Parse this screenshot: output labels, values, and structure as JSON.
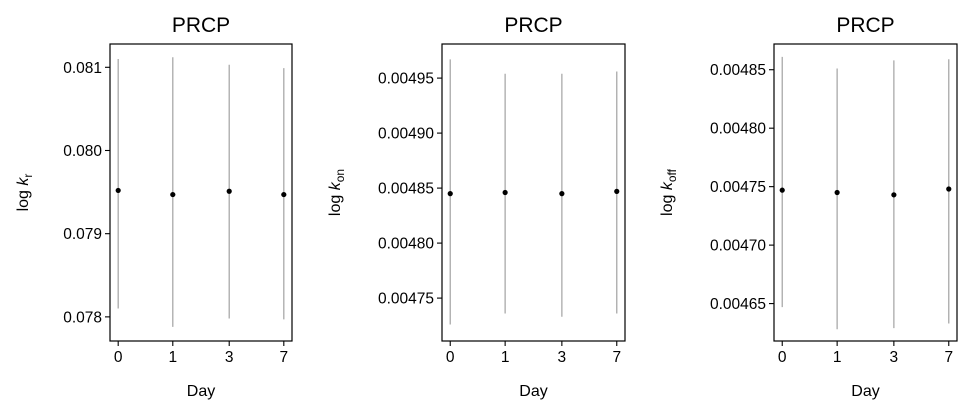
{
  "chart_data": [
    {
      "type": "scatter",
      "title": "PRCP",
      "xlabel": "Day",
      "ylabel": {
        "prefix": "log ",
        "k": "k",
        "sub": "r"
      },
      "categories": [
        "0",
        "1",
        "3",
        "7"
      ],
      "values": [
        0.07952,
        0.07947,
        0.07951,
        0.07947
      ],
      "err_low": [
        0.0781,
        0.07788,
        0.07798,
        0.07797
      ],
      "err_high": [
        0.0811,
        0.08112,
        0.08103,
        0.08099
      ],
      "ylim": [
        0.07771,
        0.08128
      ],
      "yticks": [
        0.078,
        0.079,
        0.08,
        0.081
      ],
      "ytick_labels": [
        "0.078",
        "0.079",
        "0.080",
        "0.081"
      ],
      "grid": false
    },
    {
      "type": "scatter",
      "title": "PRCP",
      "xlabel": "Day",
      "ylabel": {
        "prefix": "log ",
        "k": "k",
        "sub": "on"
      },
      "categories": [
        "0",
        "1",
        "3",
        "7"
      ],
      "values": [
        0.004845,
        0.004846,
        0.004845,
        0.004847
      ],
      "err_low": [
        0.004726,
        0.004736,
        0.004733,
        0.004736
      ],
      "err_high": [
        0.004967,
        0.004954,
        0.004954,
        0.004956
      ],
      "ylim": [
        0.004711,
        0.004981
      ],
      "yticks": [
        0.00475,
        0.0048,
        0.00485,
        0.0049,
        0.00495
      ],
      "ytick_labels": [
        "0.00475",
        "0.00480",
        "0.00485",
        "0.00490",
        "0.00495"
      ],
      "grid": false
    },
    {
      "type": "scatter",
      "title": "PRCP",
      "xlabel": "Day",
      "ylabel": {
        "prefix": "log ",
        "k": "k",
        "sub": "off"
      },
      "categories": [
        "0",
        "1",
        "3",
        "7"
      ],
      "values": [
        0.004747,
        0.004745,
        0.004743,
        0.004748
      ],
      "err_low": [
        0.004647,
        0.004628,
        0.004629,
        0.004633
      ],
      "err_high": [
        0.004861,
        0.004851,
        0.004858,
        0.004859
      ],
      "ylim": [
        0.004618,
        0.004872
      ],
      "yticks": [
        0.00465,
        0.0047,
        0.00475,
        0.0048,
        0.00485
      ],
      "ytick_labels": [
        "0.00465",
        "0.00470",
        "0.00475",
        "0.00480",
        "0.00485"
      ],
      "grid": false
    }
  ],
  "colors": {
    "point": "#000000",
    "errorbar": "#a9a9a9",
    "axes": "#000000"
  }
}
